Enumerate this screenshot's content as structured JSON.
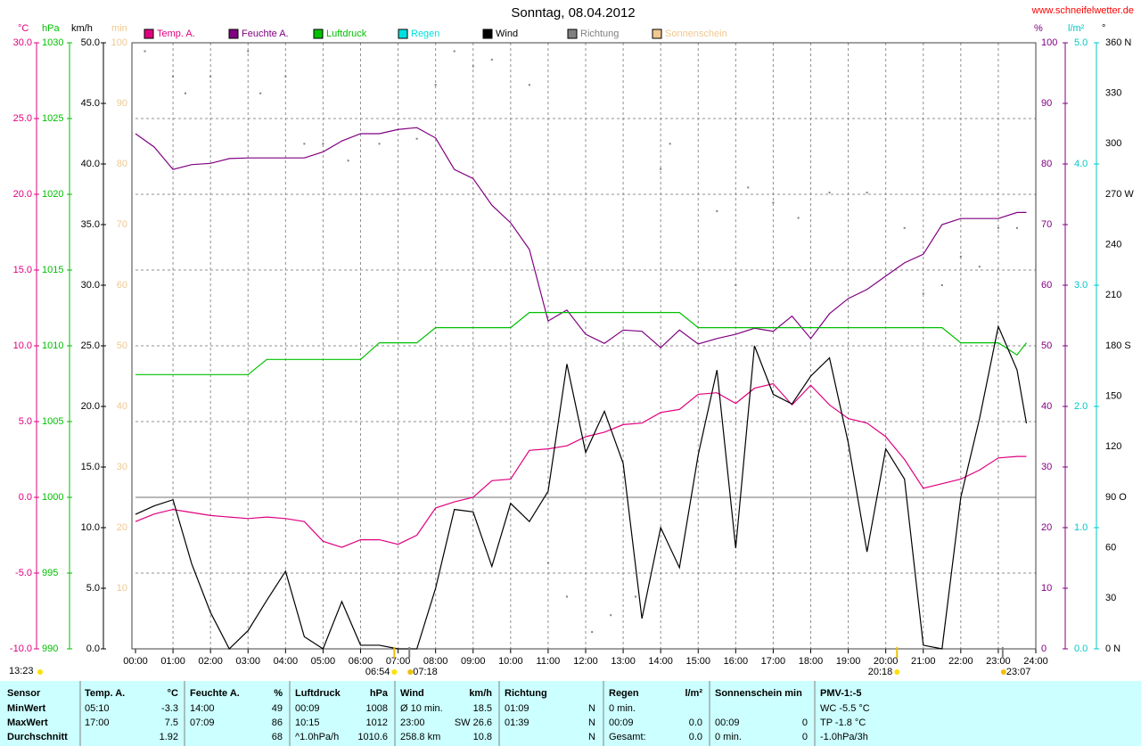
{
  "chart_data": {
    "type": "line",
    "title": "Sonntag, 08.04.2012",
    "source": "www.schneifelwetter.de",
    "grid": true,
    "xlim": [
      0,
      24
    ],
    "xticks": [
      {
        "value": 0,
        "label": "00:00"
      },
      {
        "value": 1,
        "label": "01:00"
      },
      {
        "value": 2,
        "label": "02:00"
      },
      {
        "value": 3,
        "label": "03:00"
      },
      {
        "value": 4,
        "label": "04:00"
      },
      {
        "value": 5,
        "label": "05:00"
      },
      {
        "value": 6,
        "label": "06:00"
      },
      {
        "value": 7,
        "label": "07:00"
      },
      {
        "value": 8,
        "label": "08:00"
      },
      {
        "value": 9,
        "label": "09:00"
      },
      {
        "value": 10,
        "label": "10:00"
      },
      {
        "value": 11,
        "label": "11:00"
      },
      {
        "value": 12,
        "label": "12:00"
      },
      {
        "value": 13,
        "label": "13:00"
      },
      {
        "value": 14,
        "label": "14:00"
      },
      {
        "value": 15,
        "label": "15:00"
      },
      {
        "value": 16,
        "label": "16:00"
      },
      {
        "value": 17,
        "label": "17:00"
      },
      {
        "value": 18,
        "label": "18:00"
      },
      {
        "value": 19,
        "label": "19:00"
      },
      {
        "value": 20,
        "label": "20:00"
      },
      {
        "value": 21,
        "label": "21:00"
      },
      {
        "value": 22,
        "label": "22:00"
      },
      {
        "value": 23,
        "label": "23:00"
      },
      {
        "value": 24,
        "label": "24:00"
      }
    ],
    "axes": {
      "temp": {
        "label": "°C",
        "color": "#e0007f",
        "lim": [
          -10,
          30
        ],
        "ticks": [
          {
            "value": 30,
            "label": "30.0"
          },
          {
            "value": 25,
            "label": "25.0"
          },
          {
            "value": 20,
            "label": "20.0"
          },
          {
            "value": 15,
            "label": "15.0"
          },
          {
            "value": 10,
            "label": "10.0"
          },
          {
            "value": 5,
            "label": "5.0"
          },
          {
            "value": 0,
            "label": "0.0"
          },
          {
            "value": -5,
            "label": "-5.0"
          },
          {
            "value": -10,
            "label": "-10.0"
          }
        ]
      },
      "pressure": {
        "label": "hPa",
        "color": "#00c000",
        "lim": [
          990,
          1030
        ],
        "ticks": [
          1030,
          1025,
          1020,
          1015,
          1010,
          1005,
          1000,
          995,
          990
        ]
      },
      "wind": {
        "label": "km/h",
        "color": "#000000",
        "lim": [
          0,
          50
        ],
        "ticks": [
          {
            "value": 50,
            "label": "50.0"
          },
          {
            "value": 45,
            "label": "45.0"
          },
          {
            "value": 40,
            "label": "40.0"
          },
          {
            "value": 35,
            "label": "35.0"
          },
          {
            "value": 30,
            "label": "30.0"
          },
          {
            "value": 25,
            "label": "25.0"
          },
          {
            "value": 20,
            "label": "20.0"
          },
          {
            "value": 15,
            "label": "15.0"
          },
          {
            "value": 10,
            "label": "10.0"
          },
          {
            "value": 5,
            "label": "5.0"
          },
          {
            "value": 0,
            "label": "0.0"
          }
        ]
      },
      "sun": {
        "label": "min",
        "color": "#f0c890",
        "lim": [
          0,
          100
        ],
        "ticks": [
          100,
          90,
          80,
          70,
          60,
          50,
          40,
          30,
          20,
          10
        ]
      },
      "humidity": {
        "label": "%",
        "color": "#800080",
        "lim": [
          0,
          100
        ],
        "ticks": [
          100,
          90,
          80,
          70,
          60,
          50,
          40,
          30,
          20,
          10,
          0
        ]
      },
      "rain": {
        "label": "l/m²",
        "color": "#00c8c8",
        "lim": [
          0,
          5
        ],
        "ticks": [
          {
            "value": 5,
            "label": "5.0"
          },
          {
            "value": 4,
            "label": "4.0"
          },
          {
            "value": 3,
            "label": "3.0"
          },
          {
            "value": 2,
            "label": "2.0"
          },
          {
            "value": 1,
            "label": "1.0"
          },
          {
            "value": 0,
            "label": "0.0"
          }
        ]
      },
      "direction": {
        "label": "°",
        "color": "#000000",
        "lim": [
          0,
          360
        ],
        "ticks": [
          {
            "value": 360,
            "label": "360 N"
          },
          330,
          300,
          {
            "value": 270,
            "label": "270 W"
          },
          240,
          210,
          {
            "value": 180,
            "label": "180 S"
          },
          150,
          120,
          {
            "value": 90,
            "label": "90 O"
          },
          60,
          30,
          {
            "value": 0,
            "label": "0 N"
          }
        ]
      }
    },
    "x": [
      0,
      0.5,
      1,
      1.5,
      2,
      2.5,
      3,
      3.5,
      4,
      4.5,
      5,
      5.5,
      6,
      6.5,
      7,
      7.5,
      8,
      8.5,
      9,
      9.5,
      10,
      10.5,
      11,
      11.5,
      12,
      12.5,
      13,
      13.5,
      14,
      14.5,
      15,
      15.5,
      16,
      16.5,
      17,
      17.5,
      18,
      18.5,
      19,
      19.5,
      20,
      20.5,
      21,
      21.5,
      22,
      22.5,
      23,
      23.5,
      23.75
    ],
    "series": [
      {
        "name": "Temp. A.",
        "color": "#e0007f",
        "axis": "temp",
        "values": [
          -1.6,
          -1.1,
          -0.8,
          -1.0,
          -1.2,
          -1.3,
          -1.4,
          -1.3,
          -1.4,
          -1.6,
          -2.9,
          -3.3,
          -2.8,
          -2.8,
          -3.1,
          -2.5,
          -0.7,
          -0.3,
          0.0,
          1.1,
          1.2,
          3.1,
          3.2,
          3.4,
          4.0,
          4.3,
          4.8,
          4.9,
          5.6,
          5.8,
          6.8,
          6.9,
          6.2,
          7.2,
          7.5,
          6.1,
          7.4,
          6.1,
          5.2,
          4.9,
          4.0,
          2.5,
          0.6,
          0.9,
          1.2,
          1.8,
          2.6,
          2.7,
          2.7
        ]
      },
      {
        "name": "Feuchte A.",
        "color": "#800080",
        "axis": "humidity",
        "values": [
          85,
          82.8,
          79.1,
          79.9,
          80.1,
          80.9,
          81,
          81,
          81,
          81,
          82,
          83.8,
          85,
          85,
          85.7,
          86,
          84.3,
          79.1,
          77.6,
          73.2,
          70.3,
          65.9,
          54.1,
          55.9,
          51.9,
          50.4,
          52.6,
          52.4,
          49.7,
          52.6,
          50.3,
          51.2,
          51.9,
          52.9,
          52.4,
          54.9,
          51.2,
          55.3,
          57.8,
          59.3,
          61.5,
          63.7,
          65.1,
          70,
          71,
          71,
          71,
          72,
          72
        ]
      },
      {
        "name": "Luftdruck",
        "color": "#00c000",
        "axis": "pressure",
        "values": [
          1008.1,
          1008.1,
          1008.1,
          1008.1,
          1008.1,
          1008.1,
          1008.1,
          1009.1,
          1009.1,
          1009.1,
          1009.1,
          1009.1,
          1009.1,
          1010.2,
          1010.2,
          1010.2,
          1011.2,
          1011.2,
          1011.2,
          1011.2,
          1011.2,
          1012.2,
          1012.2,
          1012.2,
          1012.2,
          1012.2,
          1012.2,
          1012.2,
          1012.2,
          1012.2,
          1011.2,
          1011.2,
          1011.2,
          1011.2,
          1011.2,
          1011.2,
          1011.2,
          1011.2,
          1011.2,
          1011.2,
          1011.2,
          1011.2,
          1011.2,
          1011.2,
          1010.2,
          1010.2,
          1010.2,
          1009.4,
          1010.2
        ]
      },
      {
        "name": "Regen",
        "color": "#00e0e0",
        "axis": "rain"
      },
      {
        "name": "Wind",
        "color": "#000000",
        "axis": "wind",
        "values": [
          11.1,
          11.8,
          12.3,
          7.0,
          3.0,
          0.0,
          1.5,
          4.0,
          6.4,
          1.0,
          0.0,
          3.9,
          0.3,
          0.3,
          0,
          0,
          5.0,
          11.5,
          11.3,
          6.8,
          12.0,
          10.5,
          13.0,
          23.5,
          16.2,
          19.6,
          15.3,
          2.5,
          10.0,
          6.7,
          16.0,
          23.0,
          8.3,
          25.0,
          21.0,
          20.2,
          22.5,
          24.0,
          17.0,
          8.0,
          16.5,
          14.0,
          0.3,
          0,
          12.5,
          19.0,
          26.6,
          23.0,
          18.6
        ]
      },
      {
        "name": "Richtung",
        "color": "#808080",
        "axis": "direction",
        "marker": "dot",
        "x": [
          0.25,
          1,
          1.33,
          2,
          3,
          3.33,
          4,
          4.5,
          5,
          5.67,
          6.5,
          7.5,
          8,
          8.5,
          9,
          9.5,
          10.5,
          11,
          11.5,
          12.17,
          12.67,
          13.33,
          14,
          14.25,
          15.5,
          16,
          16.33,
          17,
          17.67,
          18.5,
          19.5,
          20.5,
          21,
          21.5,
          22,
          22.5,
          23,
          23.5
        ],
        "values": [
          355,
          340,
          330,
          340,
          355,
          330,
          340,
          300,
          300,
          290,
          300,
          303,
          335,
          355,
          346,
          350,
          335,
          51,
          31,
          10,
          20,
          31,
          285,
          300,
          260,
          216,
          274,
          265,
          256,
          271,
          271,
          250,
          211,
          216,
          233,
          227,
          250,
          250
        ]
      },
      {
        "name": "Sonnenschein",
        "color": "#f0c890",
        "axis": "sun"
      }
    ],
    "events": [
      {
        "label": "06:54",
        "x": 6.9,
        "icon": "sun"
      },
      {
        "label": "07:18",
        "x": 7.3,
        "icon": "moon"
      },
      {
        "label": "20:18",
        "x": 20.3,
        "icon": "sun"
      },
      {
        "label": "23:07",
        "x": 23.117,
        "icon": "moon"
      }
    ],
    "moon_note": "13:23"
  },
  "table": {
    "header": {
      "label": "Sensor",
      "temp_time": "Temp. A.",
      "temp": "°C",
      "hum_time": "Feuchte A.",
      "hum": "%",
      "press_time": "Luftdruck",
      "press": "hPa",
      "wind_a": "Wind",
      "wind": "km/h",
      "dir_time": "Richtung",
      "rain_a": "Regen",
      "rain": "l/m²",
      "sun_a": "Sonnenschein min",
      "pmv": "PMV-1:-5"
    },
    "rows": [
      {
        "label": "MinWert",
        "temp_time": "05:10",
        "temp": "-3.3",
        "hum_time": "14:00",
        "hum": "49",
        "press_time": "00:09",
        "press": "1008",
        "wind_a": "Ø 10 min.",
        "wind": "18.5",
        "dir_time": "01:09",
        "dir": "N",
        "rain_a": "0 min.",
        "pmv": "WC -5.5 °C"
      },
      {
        "label": "MaxWert",
        "temp_time": "17:00",
        "temp": "7.5",
        "hum_time": "07:09",
        "hum": "86",
        "press_time": "10:15",
        "press": "1012",
        "wind_a": "23:00",
        "wind": "SW 26.6",
        "dir_time": "01:39",
        "dir": "N",
        "rain_a": "00:09",
        "rain": "0.0",
        "sun_a": "00:09",
        "sun": "0",
        "pmv": "TP -1.8 °C"
      },
      {
        "label": "Durchschnitt",
        "temp": "1.92",
        "hum": "68",
        "press_time": "^1.0hPa/h",
        "press": "1010.6",
        "wind_a": "258.8 km",
        "wind": "10.8",
        "dir": "N",
        "rain_a": "Gesamt:",
        "rain": "0.0",
        "sun_a": "0 min.",
        "sun": "0",
        "pmv": "-1.0hPa/3h"
      }
    ]
  }
}
